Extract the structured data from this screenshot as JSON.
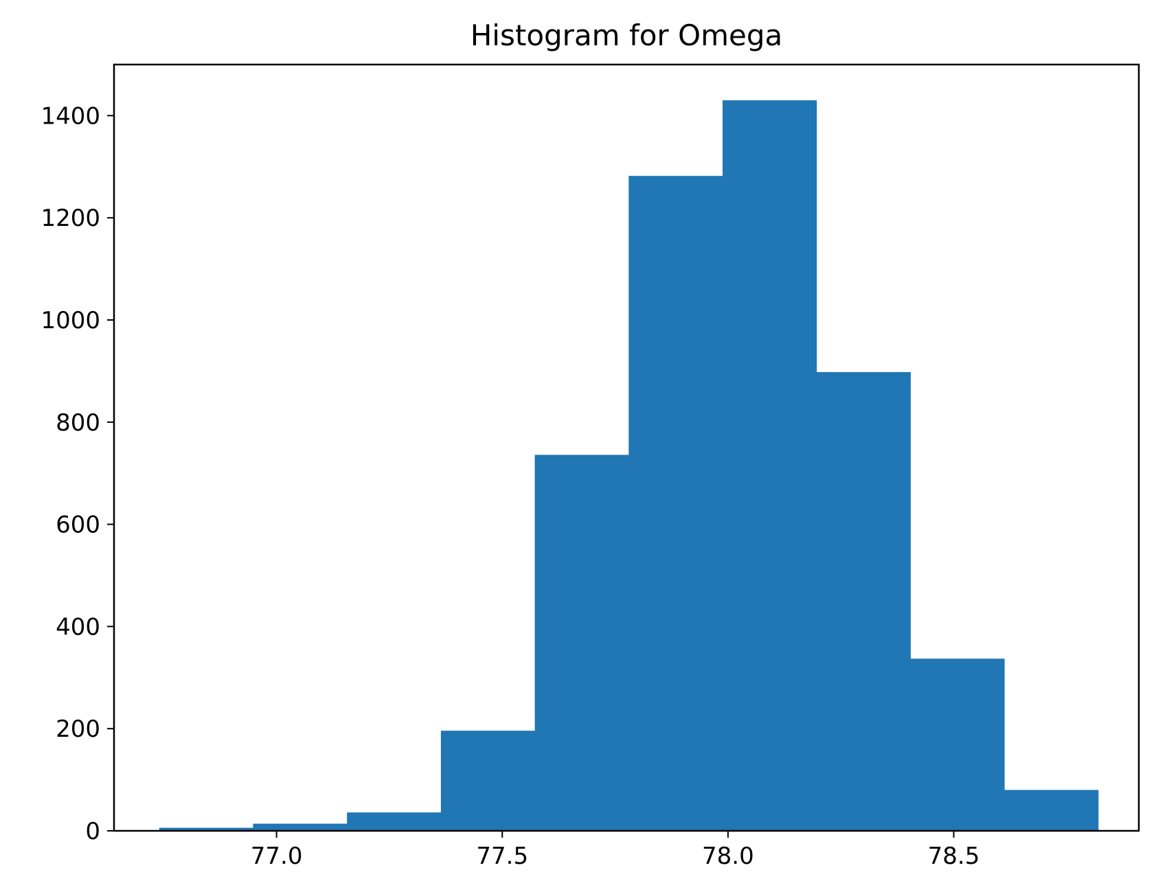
{
  "chart_data": {
    "type": "bar",
    "title": "Histogram for Omega",
    "xlabel": "",
    "ylabel": "",
    "xlim": [
      76.64,
      78.91
    ],
    "ylim": [
      0,
      1500
    ],
    "x_ticks": [
      77.0,
      77.5,
      78.0,
      78.5
    ],
    "x_tick_labels": [
      "77.0",
      "77.5",
      "78.0",
      "78.5"
    ],
    "y_ticks": [
      0,
      200,
      400,
      600,
      800,
      1000,
      1200,
      1400
    ],
    "y_tick_labels": [
      "0",
      "200",
      "400",
      "600",
      "800",
      "1000",
      "1200",
      "1400"
    ],
    "bin_edges": [
      76.74,
      76.948,
      77.156,
      77.364,
      77.572,
      77.78,
      77.988,
      78.196,
      78.404,
      78.612,
      78.82
    ],
    "values": [
      6,
      14,
      36,
      196,
      736,
      1282,
      1430,
      898,
      337,
      80
    ],
    "grid": false,
    "colors": {
      "bar": "#2077b4",
      "axes": "#000000",
      "background": "#ffffff"
    }
  }
}
